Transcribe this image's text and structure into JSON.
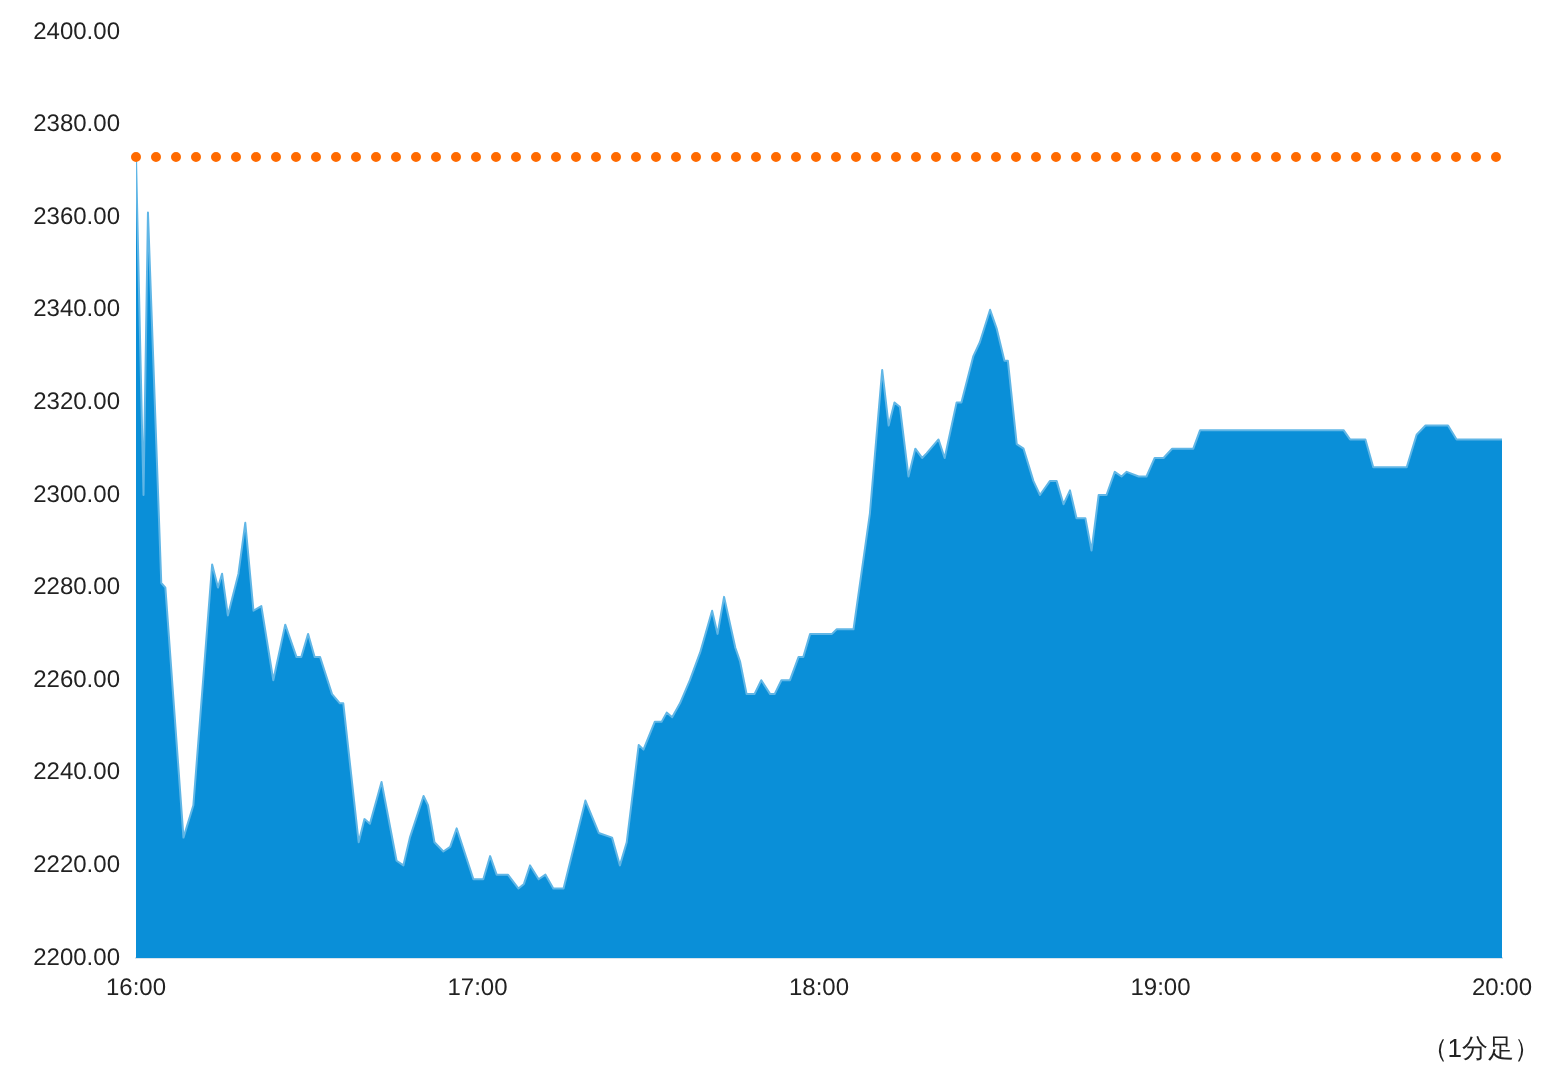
{
  "chart_data": {
    "type": "area",
    "x": [
      16.0,
      16.022,
      16.035,
      16.074,
      16.086,
      16.139,
      16.168,
      16.223,
      16.24,
      16.252,
      16.269,
      16.3,
      16.32,
      16.344,
      16.367,
      16.402,
      16.437,
      16.47,
      16.484,
      16.504,
      16.523,
      16.539,
      16.574,
      16.597,
      16.607,
      16.652,
      16.669,
      16.685,
      16.719,
      16.763,
      16.783,
      16.802,
      16.842,
      16.855,
      16.874,
      16.9,
      16.92,
      16.939,
      16.988,
      17.017,
      17.037,
      17.056,
      17.089,
      17.12,
      17.136,
      17.154,
      17.179,
      17.199,
      17.222,
      17.252,
      17.316,
      17.355,
      17.394,
      17.417,
      17.437,
      17.472,
      17.486,
      17.519,
      17.539,
      17.554,
      17.57,
      17.593,
      17.622,
      17.652,
      17.687,
      17.703,
      17.722,
      17.755,
      17.769,
      17.788,
      17.811,
      17.831,
      17.857,
      17.87,
      17.89,
      17.915,
      17.94,
      17.954,
      17.974,
      18.038,
      18.052,
      18.101,
      18.149,
      18.185,
      18.204,
      18.221,
      18.237,
      18.262,
      18.282,
      18.302,
      18.315,
      18.35,
      18.368,
      18.403,
      18.417,
      18.452,
      18.471,
      18.501,
      18.52,
      18.543,
      18.553,
      18.579,
      18.599,
      18.628,
      18.647,
      18.676,
      18.696,
      18.716,
      18.735,
      18.754,
      18.78,
      18.798,
      18.819,
      18.842,
      18.866,
      18.886,
      18.901,
      18.936,
      18.959,
      18.983,
      19.009,
      19.034,
      19.096,
      19.116,
      19.536,
      19.555,
      19.6,
      19.623,
      19.721,
      19.75,
      19.776,
      19.842,
      19.867,
      20.0
    ],
    "series": [
      {
        "color": "#0a8fd8",
        "values": [
          2373,
          2300,
          2361,
          2281,
          2280,
          2226,
          2233,
          2285,
          2280,
          2283,
          2274,
          2283,
          2294,
          2275,
          2276,
          2260,
          2272,
          2265,
          2265,
          2270,
          2265,
          2265,
          2257,
          2255,
          2255,
          2225,
          2230,
          2229,
          2238,
          2221,
          2220,
          2226,
          2235,
          2233,
          2225,
          2223,
          2224,
          2228,
          2217,
          2217,
          2222,
          2218,
          2218,
          2215,
          2216,
          2220,
          2217,
          2218,
          2215,
          2215,
          2234,
          2227,
          2226,
          2220,
          2225,
          2246,
          2245,
          2251,
          2251,
          2253,
          2252,
          2255,
          2260,
          2266,
          2275,
          2270,
          2278,
          2267,
          2264,
          2257,
          2257,
          2260,
          2257,
          2257,
          2260,
          2260,
          2265,
          2265,
          2270,
          2270,
          2271,
          2271,
          2296,
          2327,
          2315,
          2320,
          2319,
          2304,
          2310,
          2308,
          2309,
          2312,
          2308,
          2320,
          2320,
          2330,
          2333,
          2340,
          2336,
          2329,
          2329,
          2311,
          2310,
          2303,
          2300,
          2303,
          2303,
          2298,
          2301,
          2295,
          2295,
          2288,
          2300,
          2300,
          2305,
          2304,
          2305,
          2304,
          2304,
          2308,
          2308,
          2310,
          2310,
          2314,
          2314,
          2312,
          2312,
          2306,
          2306,
          2313,
          2315,
          2315,
          2312,
          2312
        ]
      }
    ],
    "xlim": [
      16,
      20
    ],
    "xticks": [
      {
        "value": 16,
        "label": "16:00"
      },
      {
        "value": 17,
        "label": "17:00"
      },
      {
        "value": 18,
        "label": "18:00"
      },
      {
        "value": 19,
        "label": "19:00"
      },
      {
        "value": 20,
        "label": "20:00"
      }
    ],
    "ylim": [
      2200,
      2400
    ],
    "yticks": [
      {
        "value": 2200,
        "label": "2200.00"
      },
      {
        "value": 2220,
        "label": "2220.00"
      },
      {
        "value": 2240,
        "label": "2240.00"
      },
      {
        "value": 2260,
        "label": "2260.00"
      },
      {
        "value": 2280,
        "label": "2280.00"
      },
      {
        "value": 2300,
        "label": "2300.00"
      },
      {
        "value": 2320,
        "label": "2320.00"
      },
      {
        "value": 2340,
        "label": "2340.00"
      },
      {
        "value": 2360,
        "label": "2360.00"
      },
      {
        "value": 2380,
        "label": "2380.00"
      },
      {
        "value": 2400,
        "label": "2400.00"
      }
    ],
    "ref_lines": [
      {
        "axis": "y",
        "value": 2373,
        "color": "#ff6a00",
        "line_style": "dotted"
      }
    ],
    "annotations": [
      "（1分足）"
    ],
    "marker": "none",
    "grid": false,
    "legend": false
  }
}
